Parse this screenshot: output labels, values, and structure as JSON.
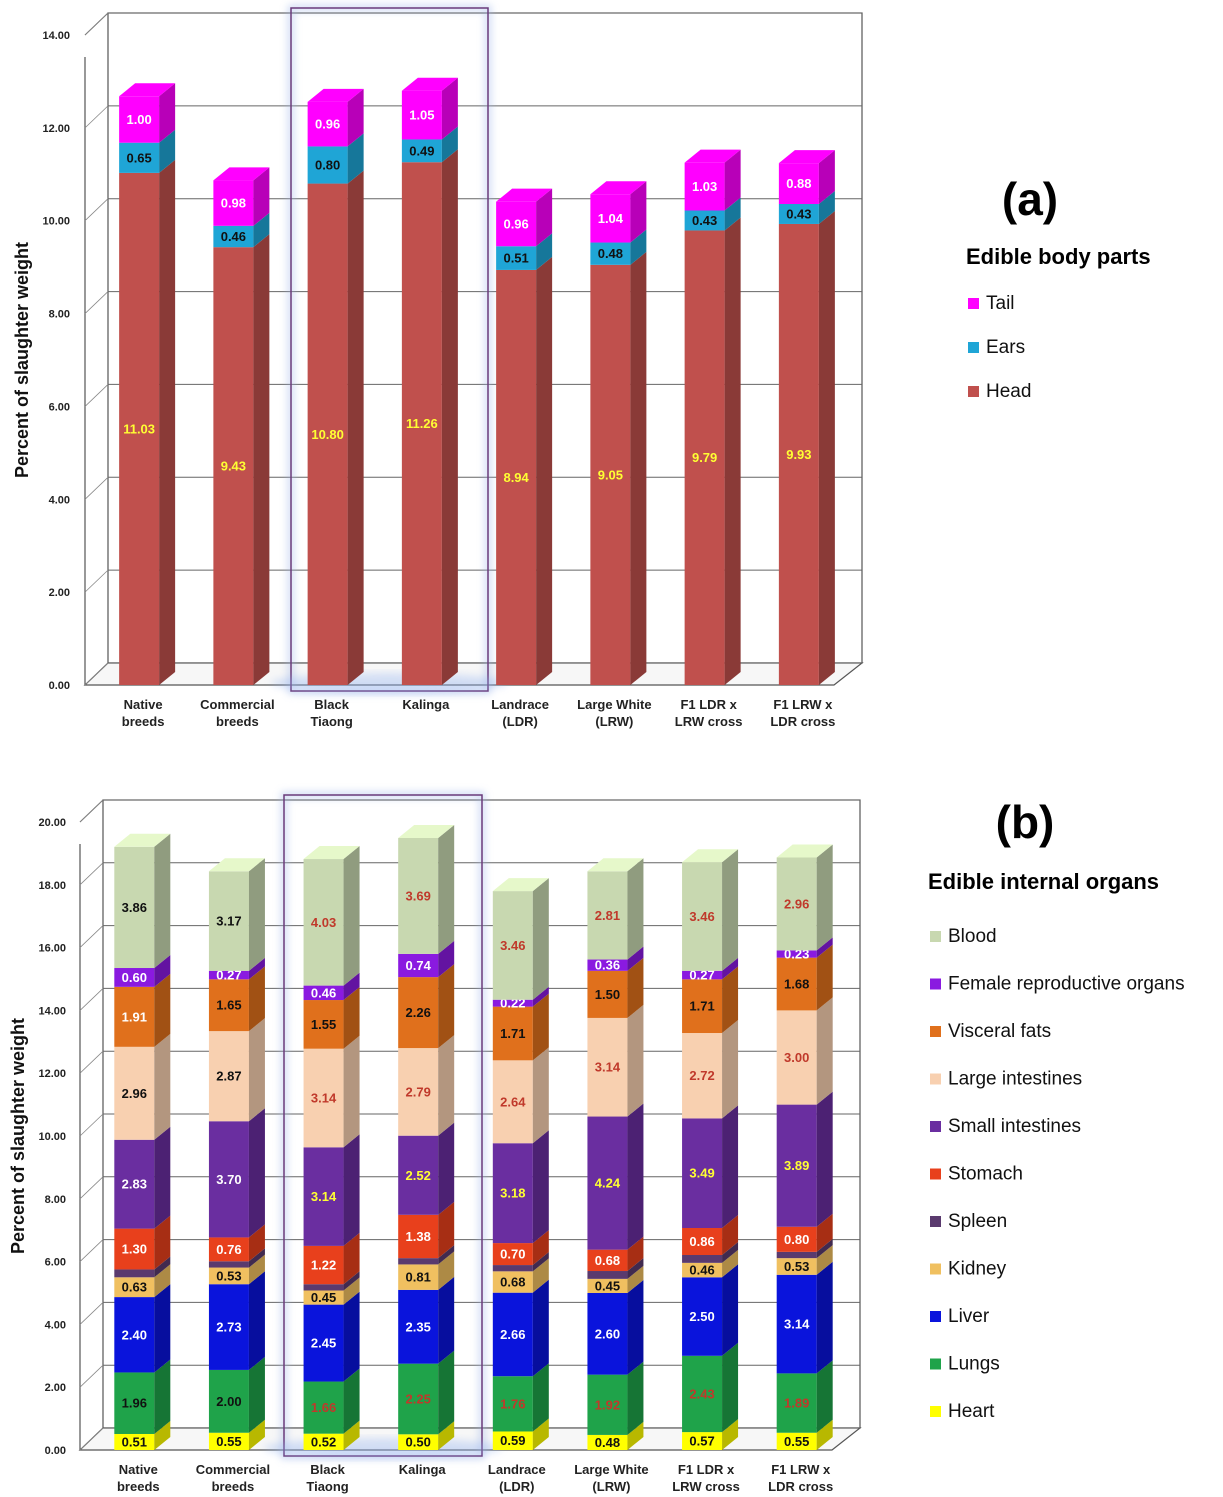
{
  "chart_data": [
    {
      "type": "bar",
      "stacked": true,
      "panel_label": "(a)",
      "legend_title": "Edible body parts",
      "ylabel": "Percent of  slaughter  weight",
      "ylim": [
        0,
        14
      ],
      "yticks": [
        "0.00",
        "2.00",
        "4.00",
        "6.00",
        "8.00",
        "10.00",
        "12.00",
        "14.00"
      ],
      "grid": true,
      "legend_position": "right",
      "categories": [
        [
          "Native",
          "breeds"
        ],
        [
          "Commercial",
          "breeds"
        ],
        [
          "Black",
          "Tiaong"
        ],
        [
          "Kalinga",
          ""
        ],
        [
          "Landrace",
          "(LDR)"
        ],
        [
          "Large White",
          "(LRW)"
        ],
        [
          "F1 LDR x",
          "LRW cross"
        ],
        [
          "F1 LRW x",
          "LDR cross"
        ]
      ],
      "highlighted_categories": [
        "Black Tiaong",
        "Kalinga"
      ],
      "series": [
        {
          "name": "Head",
          "color": "#c0504d",
          "label_color": "#ffff33",
          "values": [
            11.03,
            9.43,
            10.8,
            11.26,
            8.94,
            9.05,
            9.79,
            9.93
          ],
          "labels": [
            "11.03",
            "9.43",
            "10.80",
            "11.26",
            "8.94",
            "9.05",
            "9.79",
            "9.93"
          ]
        },
        {
          "name": "Ears",
          "color": "#1fa5d6",
          "label_color": "#111111",
          "values": [
            0.65,
            0.46,
            0.8,
            0.49,
            0.51,
            0.48,
            0.43,
            0.43
          ],
          "labels": [
            "0.65",
            "0.46",
            "0.80",
            "0.49",
            "0.51",
            "0.48",
            "0.43",
            "0.43"
          ]
        },
        {
          "name": "Tail",
          "color": "#ff00ff",
          "label_color": "#ffffff",
          "values": [
            1.0,
            0.98,
            0.96,
            1.05,
            0.96,
            1.04,
            1.03,
            0.88
          ],
          "labels": [
            "1.00",
            "0.98",
            "0.96",
            "1.05",
            "0.96",
            "1.04",
            "1.03",
            "0.88"
          ]
        }
      ],
      "legend_order": [
        "Tail",
        "Ears",
        "Head"
      ]
    },
    {
      "type": "bar",
      "stacked": true,
      "panel_label": "(b)",
      "legend_title": "Edible internal organs",
      "ylabel": "Percent of  slaughter  weight",
      "ylim": [
        0,
        20
      ],
      "yticks": [
        "0.00",
        "2.00",
        "4.00",
        "6.00",
        "8.00",
        "10.00",
        "12.00",
        "14.00",
        "16.00",
        "18.00",
        "20.00"
      ],
      "grid": true,
      "legend_position": "right",
      "categories": [
        [
          "Native",
          "breeds"
        ],
        [
          "Commercial",
          "breeds"
        ],
        [
          "Black",
          "Tiaong"
        ],
        [
          "Kalinga",
          ""
        ],
        [
          "Landrace",
          "(LDR)"
        ],
        [
          "Large White",
          "(LRW)"
        ],
        [
          "F1 LDR x",
          "LRW cross"
        ],
        [
          "F1 LRW x",
          "LDR cross"
        ]
      ],
      "highlighted_categories": [
        "Black Tiaong",
        "Kalinga"
      ],
      "series": [
        {
          "name": "Heart",
          "color": "#ffff00",
          "values": [
            0.51,
            0.55,
            0.52,
            0.5,
            0.59,
            0.48,
            0.57,
            0.55
          ],
          "labels": [
            "0.51",
            "0.55",
            "0.52",
            "0.50",
            "0.59",
            "0.48",
            "0.57",
            "0.55"
          ],
          "label_colors": [
            "#111111",
            "#111111",
            "#111111",
            "#111111",
            "#111111",
            "#111111",
            "#111111",
            "#111111"
          ]
        },
        {
          "name": "Lungs",
          "color": "#1fa34a",
          "values": [
            1.96,
            2.0,
            1.66,
            2.25,
            1.76,
            1.92,
            2.43,
            1.89
          ],
          "labels": [
            "1.96",
            "2.00",
            "1.66",
            "2.25",
            "1.76",
            "1.92",
            "2.43",
            "1.89"
          ],
          "label_colors": [
            "#111111",
            "#111111",
            "#c0392b",
            "#c0392b",
            "#c0392b",
            "#c0392b",
            "#c0392b",
            "#c0392b"
          ]
        },
        {
          "name": "Liver",
          "color": "#0a14dc",
          "values": [
            2.4,
            2.73,
            2.45,
            2.35,
            2.66,
            2.6,
            2.5,
            3.14
          ],
          "labels": [
            "2.40",
            "2.73",
            "2.45",
            "2.35",
            "2.66",
            "2.60",
            "2.50",
            "3.14"
          ],
          "label_colors": [
            "#ffffff",
            "#ffffff",
            "#ffffff",
            "#ffffff",
            "#ffffff",
            "#ffffff",
            "#ffffff",
            "#ffffff"
          ]
        },
        {
          "name": "Kidney",
          "color": "#f0c060",
          "values": [
            0.63,
            0.53,
            0.45,
            0.81,
            0.68,
            0.45,
            0.46,
            0.53
          ],
          "labels": [
            "0.63",
            "0.53",
            "0.45",
            "0.81",
            "0.68",
            "0.45",
            "0.46",
            "0.53"
          ],
          "label_colors": [
            "#111111",
            "#111111",
            "#111111",
            "#111111",
            "#111111",
            "#111111",
            "#111111",
            "#111111"
          ]
        },
        {
          "name": "Spleen",
          "color": "#5a3a6e",
          "values": [
            0.25,
            0.2,
            0.2,
            0.2,
            0.2,
            0.25,
            0.25,
            0.2
          ],
          "labels": [
            "",
            "",
            "",
            "",
            "",
            "",
            "",
            ""
          ],
          "label_colors": [
            "#ffffff",
            "#ffffff",
            "#ffffff",
            "#ffffff",
            "#ffffff",
            "#ffffff",
            "#ffffff",
            "#ffffff"
          ]
        },
        {
          "name": "Stomach",
          "color": "#e8401c",
          "values": [
            1.3,
            0.76,
            1.22,
            1.38,
            0.7,
            0.68,
            0.86,
            0.8
          ],
          "labels": [
            "1.30",
            "0.76",
            "1.22",
            "1.38",
            "0.70",
            "0.68",
            "0.86",
            "0.80"
          ],
          "label_colors": [
            "#ffffff",
            "#ffffff",
            "#ffffff",
            "#ffffff",
            "#ffffff",
            "#ffffff",
            "#ffffff",
            "#ffffff"
          ]
        },
        {
          "name": "Small intestines",
          "color": "#6a2ea0",
          "values": [
            2.83,
            3.7,
            3.14,
            2.52,
            3.18,
            4.24,
            3.49,
            3.89
          ],
          "labels": [
            "2.83",
            "3.70",
            "3.14",
            "2.52",
            "3.18",
            "4.24",
            "3.49",
            "3.89"
          ],
          "label_colors": [
            "#ffffff",
            "#ffffff",
            "#ffff33",
            "#ffff33",
            "#ffff33",
            "#ffff33",
            "#ffff33",
            "#ffff33"
          ]
        },
        {
          "name": "Large intestines",
          "color": "#f8d0b0",
          "values": [
            2.96,
            2.87,
            3.14,
            2.79,
            2.64,
            3.14,
            2.72,
            3.0
          ],
          "labels": [
            "2.96",
            "2.87",
            "3.14",
            "2.79",
            "2.64",
            "3.14",
            "2.72",
            "3.00"
          ],
          "label_colors": [
            "#111111",
            "#111111",
            "#c0392b",
            "#c0392b",
            "#c0392b",
            "#c0392b",
            "#c0392b",
            "#c0392b"
          ]
        },
        {
          "name": "Visceral fats",
          "color": "#e0701c",
          "values": [
            1.91,
            1.65,
            1.55,
            2.26,
            1.71,
            1.5,
            1.71,
            1.68
          ],
          "labels": [
            "1.91",
            "1.65",
            "1.55",
            "2.26",
            "1.71",
            "1.50",
            "1.71",
            "1.68"
          ],
          "label_colors": [
            "#ffffff",
            "#111111",
            "#111111",
            "#111111",
            "#111111",
            "#111111",
            "#111111",
            "#111111"
          ]
        },
        {
          "name": "Female reproductive organs",
          "color": "#8a1ae0",
          "values": [
            0.6,
            0.27,
            0.46,
            0.74,
            0.22,
            0.36,
            0.27,
            0.23
          ],
          "labels": [
            "0.60",
            "0.27",
            "0.46",
            "0.74",
            "0.22",
            "0.36",
            "0.27",
            "0.23"
          ],
          "label_colors": [
            "#ffffff",
            "#ffffff",
            "#ffffff",
            "#ffffff",
            "#ffffff",
            "#ffffff",
            "#ffffff",
            "#ffffff"
          ]
        },
        {
          "name": "Blood",
          "color": "#c8d8b0",
          "values": [
            3.86,
            3.17,
            4.03,
            3.69,
            3.46,
            2.81,
            3.46,
            2.96
          ],
          "labels": [
            "3.86",
            "3.17",
            "4.03",
            "3.69",
            "3.46",
            "2.81",
            "3.46",
            "2.96"
          ],
          "label_colors": [
            "#111111",
            "#111111",
            "#c0392b",
            "#c0392b",
            "#c0392b",
            "#c0392b",
            "#c0392b",
            "#c0392b"
          ]
        }
      ],
      "legend_order": [
        "Blood",
        "Female reproductive organs",
        "Visceral fats",
        "Large intestines",
        "Small intestines",
        "Stomach",
        "Spleen",
        "Kidney",
        "Liver",
        "Lungs",
        "Heart"
      ]
    }
  ]
}
